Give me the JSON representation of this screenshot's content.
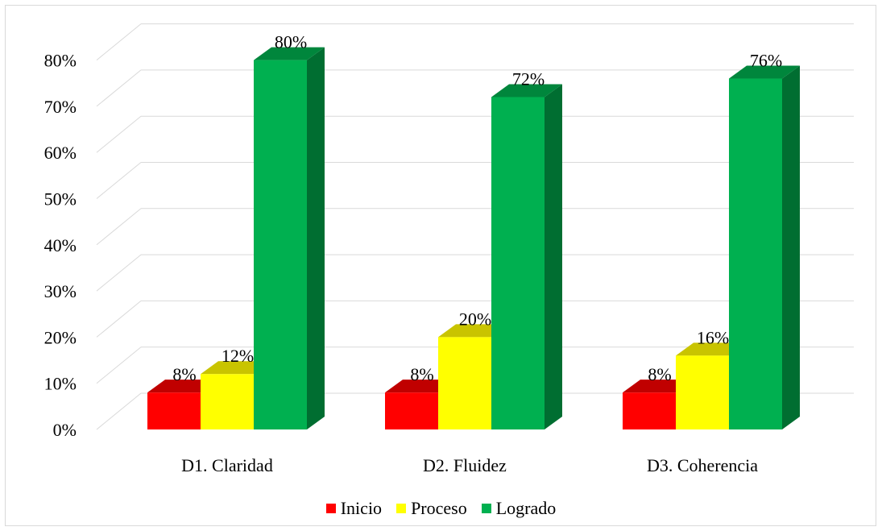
{
  "chart_data": {
    "type": "bar",
    "categories": [
      "D1. Claridad",
      "D2. Fluidez",
      "D3. Coherencia"
    ],
    "series": [
      {
        "name": "Inicio",
        "values": [
          8,
          8,
          8
        ],
        "color": "#ff0000",
        "top_color": "#c00000",
        "side_color": "#c00000"
      },
      {
        "name": "Proceso",
        "values": [
          12,
          20,
          16
        ],
        "color": "#ffff00",
        "top_color": "#c9c400",
        "side_color": "#c9c400"
      },
      {
        "name": "Logrado",
        "values": [
          80,
          72,
          76
        ],
        "color": "#00b050",
        "top_color": "#00863c",
        "side_color": "#006e31"
      }
    ],
    "data_labels": [
      [
        "8%",
        "8%",
        "8%"
      ],
      [
        "12%",
        "20%",
        "16%"
      ],
      [
        "80%",
        "72%",
        "76%"
      ]
    ],
    "ylim": [
      0,
      80
    ],
    "yticks": [
      "0%",
      "10%",
      "20%",
      "30%",
      "40%",
      "50%",
      "60%",
      "70%",
      "80%"
    ],
    "title": "",
    "xlabel": "",
    "ylabel": "",
    "grid": true,
    "legend_position": "bottom",
    "style": "3d-clustered-column"
  }
}
